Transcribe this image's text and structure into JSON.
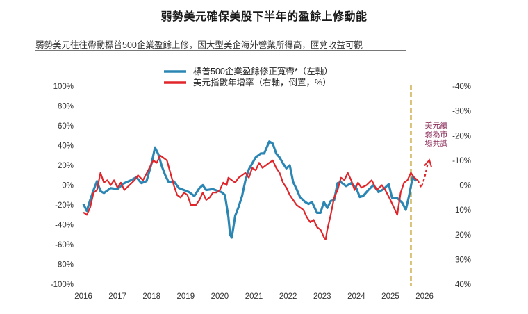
{
  "title": "弱勢美元確保美股下半年的盈餘上修動能",
  "subtitle": "弱勢美元往往帶動標普500企業盈餘上修，因大型美企海外營業所得高，匯兌收益可觀",
  "colors": {
    "blue": "#2b86b4",
    "red": "#e0262b",
    "vline": "#d9c27a",
    "annot": "#8b2c5a"
  },
  "chart_data": {
    "type": "line",
    "title": "弱勢美元確保美股下半年的盈餘上修動能",
    "x_ticks": [
      "2016",
      "2017",
      "2018",
      "2019",
      "2020",
      "2021",
      "2022",
      "2023",
      "2024",
      "2025",
      "2026"
    ],
    "xlim": [
      2016.0,
      2026.1
    ],
    "y_left": {
      "ticks": [
        "100%",
        "80%",
        "60%",
        "40%",
        "20%",
        "0%",
        "-20%",
        "-40%",
        "-60%",
        "-80%",
        "-100%"
      ],
      "ylim": [
        -100,
        100
      ]
    },
    "y_right": {
      "ticks": [
        "-40%",
        "-30%",
        "-20%",
        "-10%",
        "0%",
        "10%",
        "20%",
        "30%",
        "40%"
      ],
      "ylim": [
        40,
        -40
      ],
      "inverted": true
    },
    "vertical_line_x": 2025.6,
    "annotation": {
      "lines": [
        "美元續",
        "弱為市",
        "場共識"
      ]
    },
    "legend": {
      "position": "top-left"
    },
    "series": [
      {
        "name": "標普500企業盈餘修正寬帶*（左軸）",
        "axis": "left",
        "color": "#2b86b4",
        "points": [
          [
            2016.0,
            -19
          ],
          [
            2016.1,
            -26
          ],
          [
            2016.2,
            -15
          ],
          [
            2016.3,
            -5
          ],
          [
            2016.4,
            4
          ],
          [
            2016.5,
            -6
          ],
          [
            2016.6,
            -8
          ],
          [
            2016.8,
            -3
          ],
          [
            2017.0,
            -4
          ],
          [
            2017.2,
            2
          ],
          [
            2017.4,
            5
          ],
          [
            2017.55,
            8
          ],
          [
            2017.7,
            2
          ],
          [
            2017.85,
            4
          ],
          [
            2018.0,
            22
          ],
          [
            2018.1,
            38
          ],
          [
            2018.2,
            31
          ],
          [
            2018.3,
            19
          ],
          [
            2018.4,
            10
          ],
          [
            2018.5,
            3
          ],
          [
            2018.65,
            4
          ],
          [
            2018.8,
            -3
          ],
          [
            2018.95,
            -5
          ],
          [
            2019.1,
            -7
          ],
          [
            2019.25,
            -11
          ],
          [
            2019.4,
            -3
          ],
          [
            2019.5,
            0
          ],
          [
            2019.6,
            -5
          ],
          [
            2019.8,
            -4
          ],
          [
            2019.95,
            -6
          ],
          [
            2020.05,
            -7
          ],
          [
            2020.15,
            -10
          ],
          [
            2020.25,
            -32
          ],
          [
            2020.3,
            -50
          ],
          [
            2020.35,
            -53
          ],
          [
            2020.45,
            -31
          ],
          [
            2020.55,
            -22
          ],
          [
            2020.65,
            -11
          ],
          [
            2020.75,
            5
          ],
          [
            2020.85,
            16
          ],
          [
            2020.95,
            22
          ],
          [
            2021.05,
            28
          ],
          [
            2021.2,
            32
          ],
          [
            2021.3,
            32
          ],
          [
            2021.45,
            44
          ],
          [
            2021.55,
            42
          ],
          [
            2021.65,
            32
          ],
          [
            2021.75,
            28
          ],
          [
            2021.85,
            22
          ],
          [
            2021.95,
            17
          ],
          [
            2022.05,
            20
          ],
          [
            2022.15,
            3
          ],
          [
            2022.25,
            -4
          ],
          [
            2022.35,
            -12
          ],
          [
            2022.5,
            -17
          ],
          [
            2022.6,
            -19
          ],
          [
            2022.7,
            -17
          ],
          [
            2022.85,
            -28
          ],
          [
            2022.95,
            -28
          ],
          [
            2023.05,
            -17
          ],
          [
            2023.15,
            -23
          ],
          [
            2023.25,
            -16
          ],
          [
            2023.35,
            -15
          ],
          [
            2023.45,
            2
          ],
          [
            2023.55,
            3
          ],
          [
            2023.7,
            -1
          ],
          [
            2023.85,
            2
          ],
          [
            2024.0,
            -3
          ],
          [
            2024.1,
            -12
          ],
          [
            2024.2,
            -11
          ],
          [
            2024.35,
            -5
          ],
          [
            2024.5,
            0
          ],
          [
            2024.65,
            -7
          ],
          [
            2024.8,
            -4
          ],
          [
            2024.95,
            1
          ],
          [
            2025.05,
            -13
          ],
          [
            2025.2,
            -13
          ],
          [
            2025.35,
            -18
          ],
          [
            2025.45,
            -25
          ],
          [
            2025.55,
            -10
          ],
          [
            2025.65,
            8
          ],
          [
            2025.75,
            4
          ]
        ]
      },
      {
        "name": "美元指數年增率（右軸，倒置，%）",
        "axis": "right",
        "color": "#e0262b",
        "points": [
          [
            2016.0,
            11
          ],
          [
            2016.1,
            12
          ],
          [
            2016.2,
            9
          ],
          [
            2016.3,
            3
          ],
          [
            2016.4,
            2
          ],
          [
            2016.5,
            -5
          ],
          [
            2016.6,
            -1
          ],
          [
            2016.7,
            -2
          ],
          [
            2016.8,
            0
          ],
          [
            2016.9,
            -2
          ],
          [
            2017.0,
            1
          ],
          [
            2017.1,
            -1
          ],
          [
            2017.2,
            2
          ],
          [
            2017.35,
            0
          ],
          [
            2017.5,
            -2
          ],
          [
            2017.6,
            -4
          ],
          [
            2017.75,
            -2
          ],
          [
            2017.9,
            -6
          ],
          [
            2018.05,
            -10
          ],
          [
            2018.15,
            -9
          ],
          [
            2018.25,
            -12
          ],
          [
            2018.35,
            -11
          ],
          [
            2018.45,
            -10
          ],
          [
            2018.55,
            -5
          ],
          [
            2018.65,
            0
          ],
          [
            2018.75,
            4
          ],
          [
            2018.85,
            5
          ],
          [
            2018.95,
            3
          ],
          [
            2019.05,
            4
          ],
          [
            2019.15,
            8
          ],
          [
            2019.3,
            8
          ],
          [
            2019.4,
            6
          ],
          [
            2019.5,
            3
          ],
          [
            2019.6,
            6
          ],
          [
            2019.7,
            5
          ],
          [
            2019.8,
            3
          ],
          [
            2019.9,
            3
          ],
          [
            2020.0,
            2
          ],
          [
            2020.1,
            -1
          ],
          [
            2020.2,
            0
          ],
          [
            2020.25,
            -3
          ],
          [
            2020.35,
            -2
          ],
          [
            2020.45,
            -1
          ],
          [
            2020.55,
            -3
          ],
          [
            2020.65,
            -4
          ],
          [
            2020.75,
            -5
          ],
          [
            2020.85,
            -3
          ],
          [
            2020.95,
            -7
          ],
          [
            2021.05,
            -6
          ],
          [
            2021.15,
            -9
          ],
          [
            2021.25,
            -7
          ],
          [
            2021.35,
            -8
          ],
          [
            2021.45,
            -9
          ],
          [
            2021.55,
            -10
          ],
          [
            2021.65,
            -7
          ],
          [
            2021.75,
            -5
          ],
          [
            2021.85,
            -1
          ],
          [
            2021.95,
            1
          ],
          [
            2022.05,
            4
          ],
          [
            2022.15,
            6
          ],
          [
            2022.25,
            8
          ],
          [
            2022.35,
            9
          ],
          [
            2022.45,
            10
          ],
          [
            2022.55,
            13
          ],
          [
            2022.65,
            15
          ],
          [
            2022.75,
            14
          ],
          [
            2022.85,
            17
          ],
          [
            2022.95,
            18
          ],
          [
            2023.05,
            21
          ],
          [
            2023.1,
            22
          ],
          [
            2023.15,
            18
          ],
          [
            2023.25,
            12
          ],
          [
            2023.35,
            5
          ],
          [
            2023.45,
            2
          ],
          [
            2023.55,
            -3
          ],
          [
            2023.65,
            -2
          ],
          [
            2023.75,
            -5
          ],
          [
            2023.85,
            -2
          ],
          [
            2023.95,
            2
          ],
          [
            2024.05,
            -1
          ],
          [
            2024.15,
            1
          ],
          [
            2024.3,
            0
          ],
          [
            2024.45,
            -2
          ],
          [
            2024.6,
            2
          ],
          [
            2024.75,
            0
          ],
          [
            2024.85,
            2
          ],
          [
            2025.0,
            6
          ],
          [
            2025.1,
            9
          ],
          [
            2025.2,
            12
          ],
          [
            2025.3,
            3
          ],
          [
            2025.4,
            -1
          ],
          [
            2025.5,
            -2
          ],
          [
            2025.6,
            -5
          ],
          [
            2025.7,
            -3
          ],
          [
            2025.8,
            -2
          ]
        ]
      }
    ],
    "forecast": {
      "axis": "right",
      "color": "#e0262b",
      "style": "dashed",
      "points": [
        [
          2025.8,
          -2
        ],
        [
          2025.9,
          1
        ],
        [
          2026.0,
          -3
        ],
        [
          2026.1,
          -9
        ]
      ]
    }
  }
}
